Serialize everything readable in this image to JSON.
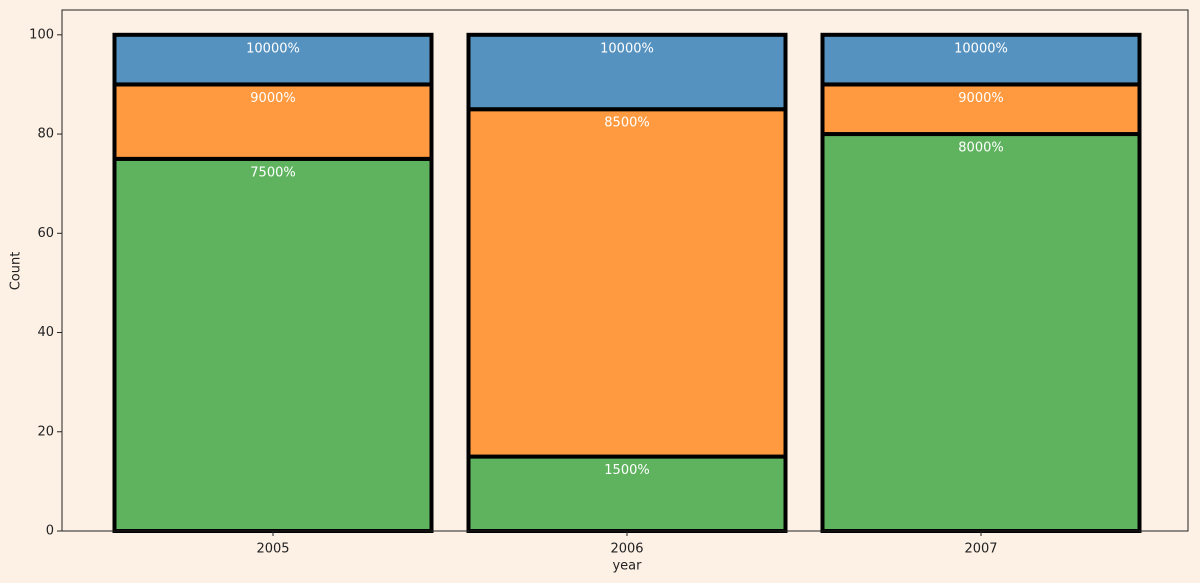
{
  "chart_data": {
    "type": "stacked_bar",
    "x_label": "year",
    "y_label": "Count",
    "categories": [
      "2005",
      "2006",
      "2007"
    ],
    "series": [
      {
        "color": "#5fb35f",
        "values": [
          75,
          15,
          80
        ],
        "annotations": [
          "7500%",
          "1500%",
          "8000%"
        ]
      },
      {
        "color": "#ff9a40",
        "values": [
          15,
          70,
          10
        ],
        "annotations": [
          "9000%",
          "8500%",
          "9000%"
        ]
      },
      {
        "color": "#5692c0",
        "values": [
          10,
          15,
          10
        ],
        "annotations": [
          "10000%",
          "10000%",
          "10000%"
        ]
      }
    ],
    "ylim": [
      0,
      105
    ],
    "yticks": [
      0,
      20,
      40,
      60,
      80,
      100
    ],
    "grid": false
  }
}
